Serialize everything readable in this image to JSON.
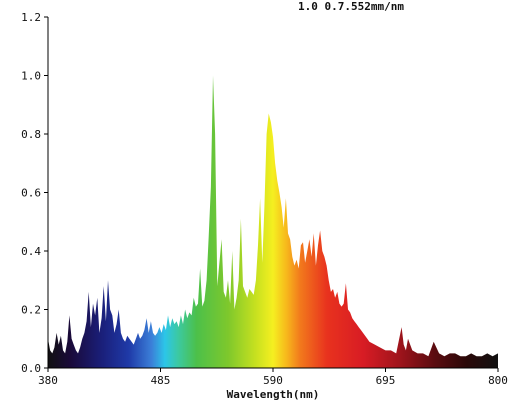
{
  "chart_data": {
    "type": "area",
    "title": "",
    "xlabel": "Wavelength(nm)",
    "ylabel": "",
    "xlim": [
      380,
      800
    ],
    "ylim": [
      0,
      1.2
    ],
    "x_ticks": [
      380,
      485,
      590,
      695,
      800
    ],
    "y_ticks": [
      0.0,
      0.2,
      0.4,
      0.6,
      0.8,
      1.0,
      1.2
    ],
    "x_tick_labels": [
      "380",
      "485",
      "590",
      "695",
      "800"
    ],
    "y_tick_labels": [
      "0.0",
      "0.2",
      "0.4",
      "0.6",
      "0.8",
      "1.0",
      "1.2"
    ],
    "partial_text": "1.0 0.7.552mm/nm",
    "fill": "visible-spectrum gradient",
    "series": [
      {
        "x": [
          380,
          382,
          384,
          386,
          388,
          390,
          392,
          394,
          396,
          398,
          400,
          402,
          404,
          406,
          408,
          410,
          412,
          414,
          416,
          418,
          420,
          422,
          424,
          426,
          428,
          430,
          432,
          434,
          436,
          438,
          440,
          442,
          444,
          446,
          448,
          450,
          452,
          454,
          456,
          458,
          460,
          462,
          464,
          466,
          468,
          470,
          472,
          474,
          476,
          478,
          480,
          482,
          484,
          486,
          488,
          490,
          492,
          494,
          496,
          498,
          500,
          502,
          504,
          506,
          508,
          510,
          512,
          514,
          516,
          518,
          520,
          522,
          524,
          526,
          528,
          530,
          532,
          534,
          536,
          538,
          540,
          542,
          544,
          546,
          548,
          550,
          552,
          554,
          556,
          558,
          560,
          562,
          564,
          566,
          568,
          570,
          572,
          574,
          576,
          578,
          580,
          582,
          584,
          586,
          588,
          590,
          592,
          594,
          596,
          598,
          600,
          602,
          604,
          606,
          608,
          610,
          612,
          614,
          616,
          618,
          620,
          622,
          624,
          626,
          628,
          630,
          632,
          634,
          636,
          638,
          640,
          642,
          644,
          646,
          648,
          650,
          652,
          654,
          656,
          658,
          660,
          662,
          664,
          666,
          668,
          670,
          672,
          674,
          676,
          678,
          680,
          685,
          690,
          695,
          700,
          705,
          710,
          712,
          714,
          716,
          720,
          725,
          730,
          735,
          740,
          745,
          750,
          755,
          760,
          765,
          770,
          775,
          780,
          785,
          790,
          795,
          800
        ],
        "y": [
          0.1,
          0.06,
          0.05,
          0.07,
          0.12,
          0.08,
          0.11,
          0.06,
          0.05,
          0.09,
          0.18,
          0.1,
          0.08,
          0.06,
          0.05,
          0.07,
          0.1,
          0.12,
          0.16,
          0.26,
          0.14,
          0.22,
          0.18,
          0.24,
          0.12,
          0.17,
          0.28,
          0.16,
          0.3,
          0.2,
          0.18,
          0.12,
          0.15,
          0.2,
          0.12,
          0.1,
          0.09,
          0.11,
          0.1,
          0.09,
          0.08,
          0.1,
          0.12,
          0.1,
          0.11,
          0.13,
          0.17,
          0.12,
          0.16,
          0.12,
          0.11,
          0.12,
          0.14,
          0.12,
          0.15,
          0.13,
          0.18,
          0.14,
          0.17,
          0.15,
          0.16,
          0.14,
          0.18,
          0.15,
          0.2,
          0.17,
          0.19,
          0.18,
          0.24,
          0.21,
          0.22,
          0.34,
          0.21,
          0.23,
          0.3,
          0.45,
          0.62,
          1.0,
          0.8,
          0.28,
          0.36,
          0.44,
          0.26,
          0.24,
          0.3,
          0.22,
          0.4,
          0.2,
          0.24,
          0.3,
          0.51,
          0.28,
          0.26,
          0.24,
          0.27,
          0.26,
          0.25,
          0.3,
          0.42,
          0.58,
          0.36,
          0.55,
          0.8,
          0.87,
          0.84,
          0.79,
          0.7,
          0.64,
          0.6,
          0.55,
          0.48,
          0.58,
          0.46,
          0.44,
          0.38,
          0.35,
          0.37,
          0.34,
          0.42,
          0.43,
          0.36,
          0.4,
          0.44,
          0.38,
          0.46,
          0.35,
          0.42,
          0.47,
          0.4,
          0.38,
          0.35,
          0.3,
          0.26,
          0.27,
          0.24,
          0.26,
          0.22,
          0.21,
          0.22,
          0.29,
          0.2,
          0.19,
          0.17,
          0.16,
          0.15,
          0.14,
          0.13,
          0.12,
          0.11,
          0.1,
          0.09,
          0.08,
          0.07,
          0.06,
          0.06,
          0.05,
          0.14,
          0.08,
          0.06,
          0.1,
          0.06,
          0.05,
          0.05,
          0.04,
          0.09,
          0.05,
          0.04,
          0.05,
          0.05,
          0.04,
          0.04,
          0.05,
          0.04,
          0.04,
          0.05,
          0.04,
          0.05
        ]
      }
    ]
  }
}
